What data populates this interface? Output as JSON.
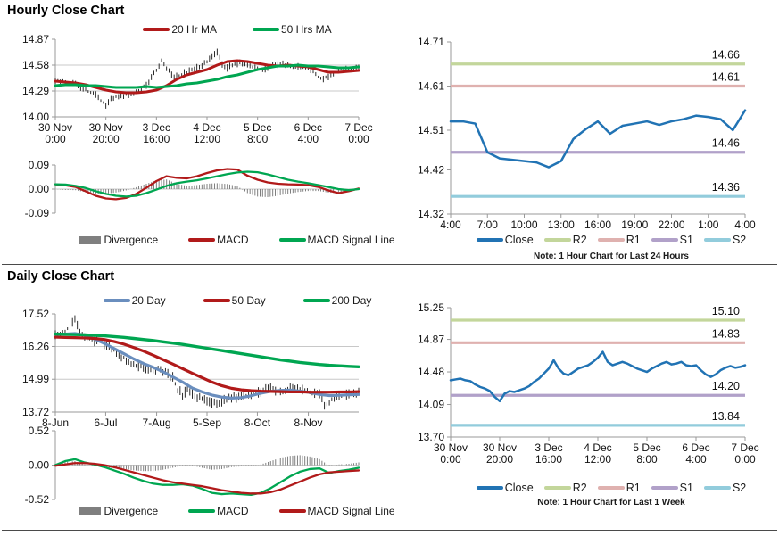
{
  "sections": {
    "hourly": {
      "title": "Hourly Close Chart"
    },
    "daily": {
      "title": "Daily Close Chart"
    }
  },
  "colors": {
    "candle": "#141414",
    "divergence_gray": "#7F7F7F",
    "dark_red": "#B11A1A",
    "green": "#00A651",
    "steel_blue": "#6A8EBE",
    "close_blue": "#2173B4",
    "r2_olive": "#C3D69B",
    "r1_pink": "#DFB1AF",
    "s1_purple": "#B1A1C9",
    "s2_lightblue": "#92CCDC",
    "axis": "#999999",
    "grid": "#C8C8C8",
    "text": "#111111"
  },
  "chart_data": [
    {
      "name": "hourly-price",
      "type": "candlestick",
      "ylim": [
        14.0,
        14.87
      ],
      "yticks": [
        14.87,
        14.58,
        14.29,
        14.0
      ],
      "grid": [
        14.58,
        14.29
      ],
      "xticks": [
        [
          "30 Nov",
          "0:00"
        ],
        [
          "30 Nov",
          "20:00"
        ],
        [
          "3 Dec",
          "16:00"
        ],
        [
          "4 Dec",
          "12:00"
        ],
        [
          "5 Dec",
          "8:00"
        ],
        [
          "6 Dec",
          "4:00"
        ],
        [
          "7 Dec",
          "0:00"
        ]
      ],
      "candles_close": [
        14.4,
        14.41,
        14.4,
        14.38,
        14.37,
        14.33,
        14.3,
        14.28,
        14.25,
        14.18,
        14.13,
        14.2,
        14.22,
        14.24,
        14.25,
        14.26,
        14.28,
        14.31,
        14.36,
        14.44,
        14.52,
        14.63,
        14.55,
        14.47,
        14.45,
        14.48,
        14.5,
        14.52,
        14.55,
        14.58,
        14.62,
        14.68,
        14.72,
        14.58,
        14.55,
        14.58,
        14.6,
        14.6,
        14.58,
        14.56,
        14.55,
        14.52,
        14.55,
        14.57,
        14.58,
        14.6,
        14.58,
        14.57,
        14.56,
        14.55,
        14.55,
        14.5,
        14.45,
        14.43,
        14.45,
        14.48,
        14.52,
        14.54,
        14.53,
        14.54,
        14.55
      ],
      "series": [
        {
          "name": "20 Hr MA",
          "color": "#B11A1A",
          "width": 3,
          "values": [
            14.4,
            14.39,
            14.38,
            14.36,
            14.33,
            14.3,
            14.28,
            14.27,
            14.27,
            14.28,
            14.3,
            14.35,
            14.42,
            14.47,
            14.5,
            14.53,
            14.58,
            14.62,
            14.63,
            14.62,
            14.6,
            14.58,
            14.57,
            14.58,
            14.57,
            14.56,
            14.53,
            14.5,
            14.5,
            14.51,
            14.52
          ]
        },
        {
          "name": "50 Hrs MA",
          "color": "#00A651",
          "width": 3,
          "values": [
            14.35,
            14.36,
            14.36,
            14.35,
            14.35,
            14.34,
            14.33,
            14.33,
            14.33,
            14.34,
            14.33,
            14.34,
            14.35,
            14.37,
            14.38,
            14.4,
            14.42,
            14.45,
            14.47,
            14.5,
            14.53,
            14.55,
            14.57,
            14.57,
            14.58,
            14.57,
            14.57,
            14.56,
            14.55,
            14.55,
            14.56
          ]
        }
      ],
      "legend": [
        {
          "label": "20 Hr MA",
          "color": "#B11A1A",
          "type": "line"
        },
        {
          "label": "50 Hrs MA",
          "color": "#00A651",
          "type": "line"
        }
      ]
    },
    {
      "name": "hourly-macd",
      "type": "line",
      "ylim": [
        -0.09,
        0.09
      ],
      "yticks": [
        0.09,
        0.0,
        -0.09
      ],
      "grid": [
        0
      ],
      "divergence": true,
      "series": [
        {
          "name": "MACD",
          "color": "#B11A1A",
          "width": 2.3,
          "values": [
            0.018,
            0.014,
            0.008,
            -0.008,
            -0.025,
            -0.035,
            -0.038,
            -0.033,
            -0.018,
            0.005,
            0.03,
            0.048,
            0.042,
            0.04,
            0.048,
            0.06,
            0.07,
            0.075,
            0.073,
            0.05,
            0.035,
            0.025,
            0.02,
            0.018,
            0.017,
            0.015,
            0.008,
            -0.005,
            -0.015,
            -0.008,
            0.002
          ]
        },
        {
          "name": "MACD Signal Line",
          "color": "#00A651",
          "width": 2.3,
          "values": [
            0.018,
            0.017,
            0.012,
            0.004,
            -0.008,
            -0.018,
            -0.025,
            -0.028,
            -0.025,
            -0.015,
            -0.002,
            0.012,
            0.022,
            0.028,
            0.033,
            0.04,
            0.048,
            0.056,
            0.062,
            0.065,
            0.063,
            0.055,
            0.045,
            0.035,
            0.028,
            0.022,
            0.015,
            0.008,
            0.0,
            -0.004,
            0.0
          ]
        }
      ],
      "legend": [
        {
          "label": "Divergence",
          "color": "#7F7F7F",
          "type": "box"
        },
        {
          "label": "MACD",
          "color": "#B11A1A",
          "type": "line"
        },
        {
          "label": "MACD Signal Line",
          "color": "#00A651",
          "type": "line"
        }
      ]
    },
    {
      "name": "hourly-support-resistance",
      "type": "line",
      "note": "Note: 1 Hour Chart for Last 24 Hours",
      "ylim": [
        14.32,
        14.71
      ],
      "yticks": [
        14.71,
        14.61,
        14.51,
        14.42,
        14.32
      ],
      "grid": [],
      "xticks": [
        "4:00",
        "7:00",
        "10:00",
        "13:00",
        "16:00",
        "19:00",
        "22:00",
        "1:00",
        "4:00"
      ],
      "levels": [
        {
          "name": "R2",
          "value": 14.66,
          "color": "#C3D69B"
        },
        {
          "name": "R1",
          "value": 14.61,
          "color": "#DFB1AF"
        },
        {
          "name": "S1",
          "value": 14.46,
          "color": "#B1A1C9"
        },
        {
          "name": "S2",
          "value": 14.36,
          "color": "#92CCDC"
        }
      ],
      "series": [
        {
          "name": "Close",
          "color": "#2173B4",
          "width": 2.5,
          "values": [
            14.53,
            14.53,
            14.525,
            14.46,
            14.446,
            14.443,
            14.44,
            14.437,
            14.426,
            14.44,
            14.49,
            14.512,
            14.53,
            14.502,
            14.52,
            14.525,
            14.53,
            14.522,
            14.53,
            14.535,
            14.543,
            14.54,
            14.535,
            14.51,
            14.555
          ]
        }
      ],
      "legend": [
        {
          "label": "Close",
          "color": "#2173B4",
          "type": "line"
        },
        {
          "label": "R2",
          "color": "#C3D69B",
          "type": "line"
        },
        {
          "label": "R1",
          "color": "#DFB1AF",
          "type": "line"
        },
        {
          "label": "S1",
          "color": "#B1A1C9",
          "type": "line"
        },
        {
          "label": "S2",
          "color": "#92CCDC",
          "type": "line"
        }
      ]
    },
    {
      "name": "daily-price",
      "type": "candlestick",
      "ylim": [
        13.72,
        17.52
      ],
      "yticks": [
        17.52,
        16.26,
        14.99,
        13.72
      ],
      "grid": [
        16.26,
        14.99
      ],
      "xticks": [
        "8-Jun",
        "6-Jul",
        "7-Aug",
        "5-Sep",
        "8-Oct",
        "8-Nov"
      ],
      "xtick_pos": [
        0,
        0.166,
        0.334,
        0.5,
        0.666,
        0.834
      ],
      "candles_close": [
        16.7,
        16.78,
        16.85,
        17.05,
        17.3,
        16.85,
        16.55,
        16.6,
        16.45,
        16.5,
        16.35,
        16.25,
        16.1,
        15.95,
        15.85,
        15.7,
        15.55,
        15.45,
        15.5,
        15.35,
        15.3,
        15.4,
        15.3,
        15.2,
        15.05,
        14.6,
        14.4,
        14.55,
        14.45,
        14.3,
        14.25,
        14.15,
        14.05,
        14.0,
        14.15,
        14.2,
        14.3,
        14.25,
        14.3,
        14.35,
        14.4,
        14.45,
        14.48,
        14.6,
        14.65,
        14.55,
        14.5,
        14.58,
        14.62,
        14.65,
        14.6,
        14.55,
        14.5,
        14.48,
        14.45,
        13.95,
        14.1,
        14.28,
        14.33,
        14.38,
        14.42,
        14.45,
        14.5
      ],
      "series": [
        {
          "name": "20 Day",
          "color": "#6A8EBE",
          "width": 3.2,
          "values": [
            16.72,
            16.74,
            16.76,
            16.7,
            16.55,
            16.38,
            16.18,
            15.98,
            15.78,
            15.6,
            15.45,
            15.28,
            15.08,
            14.88,
            14.65,
            14.5,
            14.38,
            14.3,
            14.26,
            14.28,
            14.35,
            14.45,
            14.52,
            14.56,
            14.57,
            14.53,
            14.48,
            14.4,
            14.36,
            14.37,
            14.39,
            14.4
          ]
        },
        {
          "name": "50 Day",
          "color": "#B11A1A",
          "width": 3.2,
          "values": [
            16.62,
            16.61,
            16.6,
            16.59,
            16.57,
            16.53,
            16.45,
            16.35,
            16.22,
            16.08,
            15.92,
            15.75,
            15.58,
            15.4,
            15.22,
            15.05,
            14.88,
            14.74,
            14.64,
            14.58,
            14.55,
            14.53,
            14.52,
            14.51,
            14.5,
            14.5,
            14.49,
            14.49,
            14.49,
            14.5,
            14.5,
            14.51
          ]
        },
        {
          "name": "200 Day",
          "color": "#00A651",
          "width": 3.4,
          "values": [
            16.74,
            16.73,
            16.72,
            16.71,
            16.69,
            16.67,
            16.64,
            16.61,
            16.57,
            16.53,
            16.49,
            16.44,
            16.39,
            16.34,
            16.28,
            16.22,
            16.16,
            16.1,
            16.04,
            15.98,
            15.92,
            15.86,
            15.8,
            15.74,
            15.69,
            15.64,
            15.6,
            15.56,
            15.53,
            15.51,
            15.49,
            15.47
          ]
        }
      ],
      "legend": [
        {
          "label": "20 Day",
          "color": "#6A8EBE",
          "type": "line"
        },
        {
          "label": "50 Day",
          "color": "#B11A1A",
          "type": "line"
        },
        {
          "label": "200 Day",
          "color": "#00A651",
          "type": "line"
        }
      ]
    },
    {
      "name": "daily-macd",
      "type": "line",
      "ylim": [
        -0.52,
        0.52
      ],
      "yticks": [
        0.52,
        0.0,
        -0.52
      ],
      "grid": [
        0
      ],
      "divergence": true,
      "series": [
        {
          "name": "MACD",
          "color": "#00A651",
          "width": 2.3,
          "values": [
            0.0,
            0.06,
            0.09,
            0.04,
            0.01,
            -0.03,
            -0.08,
            -0.13,
            -0.19,
            -0.24,
            -0.28,
            -0.3,
            -0.3,
            -0.29,
            -0.31,
            -0.36,
            -0.42,
            -0.44,
            -0.43,
            -0.44,
            -0.45,
            -0.42,
            -0.35,
            -0.26,
            -0.17,
            -0.1,
            -0.06,
            -0.05,
            -0.12,
            -0.09,
            -0.07,
            -0.04
          ]
        },
        {
          "name": "MACD Signal Line",
          "color": "#B11A1A",
          "width": 2.3,
          "values": [
            -0.01,
            0.01,
            0.03,
            0.03,
            0.02,
            0.0,
            -0.03,
            -0.07,
            -0.11,
            -0.15,
            -0.19,
            -0.23,
            -0.26,
            -0.28,
            -0.3,
            -0.32,
            -0.35,
            -0.38,
            -0.4,
            -0.42,
            -0.43,
            -0.43,
            -0.41,
            -0.37,
            -0.31,
            -0.25,
            -0.19,
            -0.14,
            -0.11,
            -0.1,
            -0.09,
            -0.08
          ]
        }
      ],
      "legend": [
        {
          "label": "Divergence",
          "color": "#7F7F7F",
          "type": "box"
        },
        {
          "label": "MACD",
          "color": "#00A651",
          "type": "line"
        },
        {
          "label": "MACD Signal Line",
          "color": "#B11A1A",
          "type": "line"
        }
      ]
    },
    {
      "name": "weekly-support-resistance",
      "type": "line",
      "note": "Note: 1 Hour Chart for Last 1 Week",
      "ylim": [
        13.7,
        15.25
      ],
      "yticks": [
        15.25,
        14.87,
        14.48,
        14.09,
        13.7
      ],
      "grid": [],
      "xticks": [
        [
          "30 Nov",
          "0:00"
        ],
        [
          "30 Nov",
          "20:00"
        ],
        [
          "3 Dec",
          "16:00"
        ],
        [
          "4 Dec",
          "12:00"
        ],
        [
          "5 Dec",
          "8:00"
        ],
        [
          "6 Dec",
          "4:00"
        ],
        [
          "7 Dec",
          "0:00"
        ]
      ],
      "levels": [
        {
          "name": "R2",
          "value": 15.1,
          "color": "#C3D69B"
        },
        {
          "name": "R1",
          "value": 14.83,
          "color": "#DFB1AF"
        },
        {
          "name": "S1",
          "value": 14.2,
          "color": "#B1A1C9"
        },
        {
          "name": "S2",
          "value": 13.84,
          "color": "#92CCDC"
        }
      ],
      "series": [
        {
          "name": "Close",
          "color": "#2173B4",
          "width": 2.5,
          "values": [
            14.38,
            14.39,
            14.4,
            14.38,
            14.37,
            14.33,
            14.3,
            14.28,
            14.25,
            14.18,
            14.13,
            14.22,
            14.25,
            14.24,
            14.26,
            14.28,
            14.31,
            14.36,
            14.4,
            14.46,
            14.52,
            14.62,
            14.52,
            14.46,
            14.44,
            14.48,
            14.52,
            14.54,
            14.56,
            14.6,
            14.65,
            14.72,
            14.6,
            14.56,
            14.58,
            14.6,
            14.58,
            14.55,
            14.52,
            14.5,
            14.48,
            14.52,
            14.55,
            14.58,
            14.6,
            14.57,
            14.58,
            14.6,
            14.56,
            14.55,
            14.56,
            14.5,
            14.45,
            14.42,
            14.45,
            14.5,
            14.53,
            14.55,
            14.53,
            14.54,
            14.56
          ]
        }
      ],
      "legend": [
        {
          "label": "Close",
          "color": "#2173B4",
          "type": "line"
        },
        {
          "label": "R2",
          "color": "#C3D69B",
          "type": "line"
        },
        {
          "label": "R1",
          "color": "#DFB1AF",
          "type": "line"
        },
        {
          "label": "S1",
          "color": "#B1A1C9",
          "type": "line"
        },
        {
          "label": "S2",
          "color": "#92CCDC",
          "type": "line"
        }
      ]
    }
  ]
}
